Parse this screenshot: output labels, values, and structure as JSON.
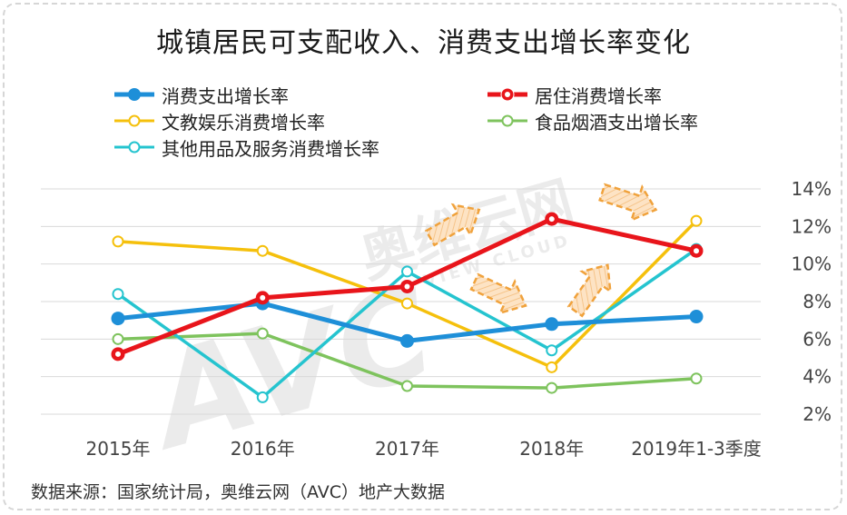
{
  "title": "城镇居民可支配收入、消费支出增长率变化",
  "source": "数据来源：国家统计局，奥维云网（AVC）地产大数据",
  "watermark": {
    "brand": "AVC",
    "cn": "奥维云网",
    "en": "ALL VIEW CLOUD"
  },
  "chart_data": {
    "type": "line",
    "categories": [
      "2015年",
      "2016年",
      "2017年",
      "2018年",
      "2019年1-3季度"
    ],
    "ylim": [
      2,
      14
    ],
    "yticks": [
      "2%",
      "4%",
      "6%",
      "8%",
      "10%",
      "12%",
      "14%"
    ],
    "grid": true,
    "legend_position": "top",
    "series": [
      {
        "name": "消费支出增长率",
        "color": "#1e8fd8",
        "filled": true,
        "values": [
          7.1,
          7.9,
          5.9,
          6.8,
          7.2
        ]
      },
      {
        "name": "居住消费增长率",
        "color": "#e8151b",
        "filled": true,
        "values": [
          5.2,
          8.2,
          8.8,
          12.4,
          10.7
        ]
      },
      {
        "name": "文教娱乐消费增长率",
        "color": "#f5c00c",
        "filled": false,
        "values": [
          11.2,
          10.7,
          7.9,
          4.5,
          12.3
        ]
      },
      {
        "name": "食品烟酒支出增长率",
        "color": "#7ec35d",
        "filled": false,
        "values": [
          6.0,
          6.3,
          3.5,
          3.4,
          3.9
        ]
      },
      {
        "name": "其他用品及服务消费增长率",
        "color": "#25c4cf",
        "filled": false,
        "values": [
          8.4,
          2.9,
          9.6,
          5.4,
          10.8
        ]
      }
    ]
  }
}
